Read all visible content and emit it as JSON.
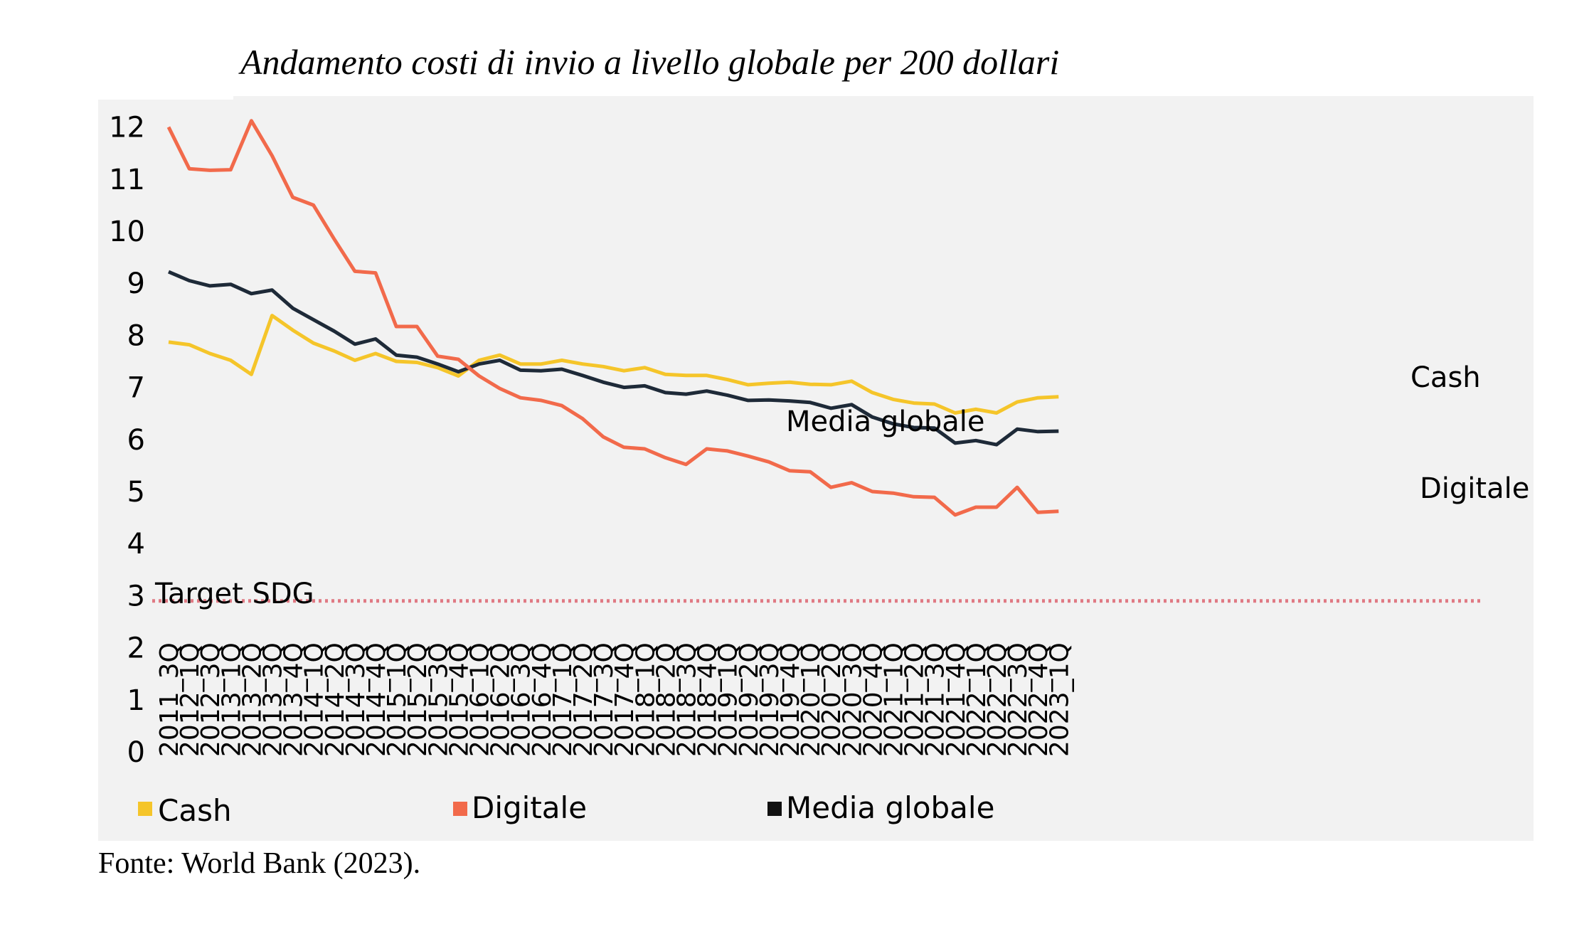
{
  "chart_data": {
    "type": "line",
    "title": "Andamento costi di invio a livello globale per 200 dollari",
    "source": "Fonte: World Bank (2023).",
    "ylim": [
      0,
      12
    ],
    "yticks": [
      "0",
      "1",
      "2",
      "3",
      "4",
      "5",
      "6",
      "7",
      "8",
      "9",
      "10",
      "11",
      "12"
    ],
    "grid": false,
    "legend_placement": "bottom",
    "x": [
      "2011_3Q",
      "2012_1Q",
      "2012_3Q",
      "2013_1Q",
      "2013_2Q",
      "2013_3Q",
      "2013_4Q",
      "2014_1Q",
      "2014_2Q",
      "2014_3Q",
      "2014_4Q",
      "2015_1Q",
      "2015_2Q",
      "2015_3Q",
      "2015_4Q",
      "2016_1Q",
      "2016_2Q",
      "2016_3Q",
      "2016_4Q",
      "2017_1Q",
      "2017_2Q",
      "2017_3Q",
      "2017_4Q",
      "2018_1Q",
      "2018_2Q",
      "2018_3Q",
      "2018_4Q",
      "2019_1Q",
      "2019_2Q",
      "2019_3Q",
      "2019_4Q",
      "2020_1Q",
      "2020_2Q",
      "2020_3Q",
      "2020_4Q",
      "2021_1Q",
      "2021_2Q",
      "2021_3Q",
      "2021_4Q",
      "2022_1Q",
      "2022_2Q",
      "2022_3Q",
      "2022_4Q",
      "2023_1Q"
    ],
    "series": [
      {
        "name": "Cash",
        "color": "#f5c52a",
        "values": [
          7.87,
          7.82,
          7.65,
          7.52,
          7.25,
          8.38,
          8.1,
          7.85,
          7.7,
          7.52,
          7.65,
          7.5,
          7.48,
          7.38,
          7.22,
          7.52,
          7.62,
          7.45,
          7.45,
          7.52,
          7.45,
          7.4,
          7.32,
          7.38,
          7.25,
          7.23,
          7.23,
          7.15,
          7.05,
          7.08,
          7.1,
          7.06,
          7.05,
          7.12,
          6.9,
          6.77,
          6.7,
          6.68,
          6.51,
          6.58,
          6.51,
          6.72,
          6.8,
          6.82
        ]
      },
      {
        "name": "Digitale",
        "color": "#f26a4b",
        "values": [
          12.0,
          11.2,
          11.17,
          11.18,
          12.12,
          11.45,
          10.65,
          10.5,
          9.85,
          9.23,
          9.2,
          8.17,
          8.17,
          7.6,
          7.54,
          7.22,
          6.98,
          6.8,
          6.75,
          6.65,
          6.4,
          6.05,
          5.85,
          5.82,
          5.65,
          5.52,
          5.82,
          5.78,
          5.68,
          5.57,
          5.4,
          5.38,
          5.08,
          5.17,
          5.0,
          4.97,
          4.9,
          4.89,
          4.55,
          4.7,
          4.7,
          5.08,
          4.6,
          4.62
        ]
      },
      {
        "name": "Media globale",
        "color": "#1e2a38",
        "values": [
          9.22,
          9.05,
          8.95,
          8.98,
          8.8,
          8.87,
          8.52,
          8.3,
          8.08,
          7.83,
          7.93,
          7.62,
          7.58,
          7.45,
          7.3,
          7.45,
          7.52,
          7.33,
          7.32,
          7.35,
          7.23,
          7.1,
          7.0,
          7.03,
          6.9,
          6.87,
          6.93,
          6.85,
          6.75,
          6.76,
          6.74,
          6.71,
          6.6,
          6.67,
          6.43,
          6.3,
          6.23,
          6.22,
          5.93,
          5.98,
          5.9,
          6.2,
          6.15,
          6.16
        ]
      }
    ],
    "annotations": [
      {
        "text": "Target SDG",
        "y": 2.9,
        "style": "dotted",
        "color": "#e07a84"
      },
      {
        "text": "Cash"
      },
      {
        "text": "Media globale"
      },
      {
        "text": "Digitale"
      }
    ],
    "legend": [
      {
        "label": "Cash",
        "color": "#f5c52a"
      },
      {
        "label": "Digitale",
        "color": "#f26a4b"
      },
      {
        "label": "Media globale",
        "color": "#111111"
      }
    ]
  }
}
